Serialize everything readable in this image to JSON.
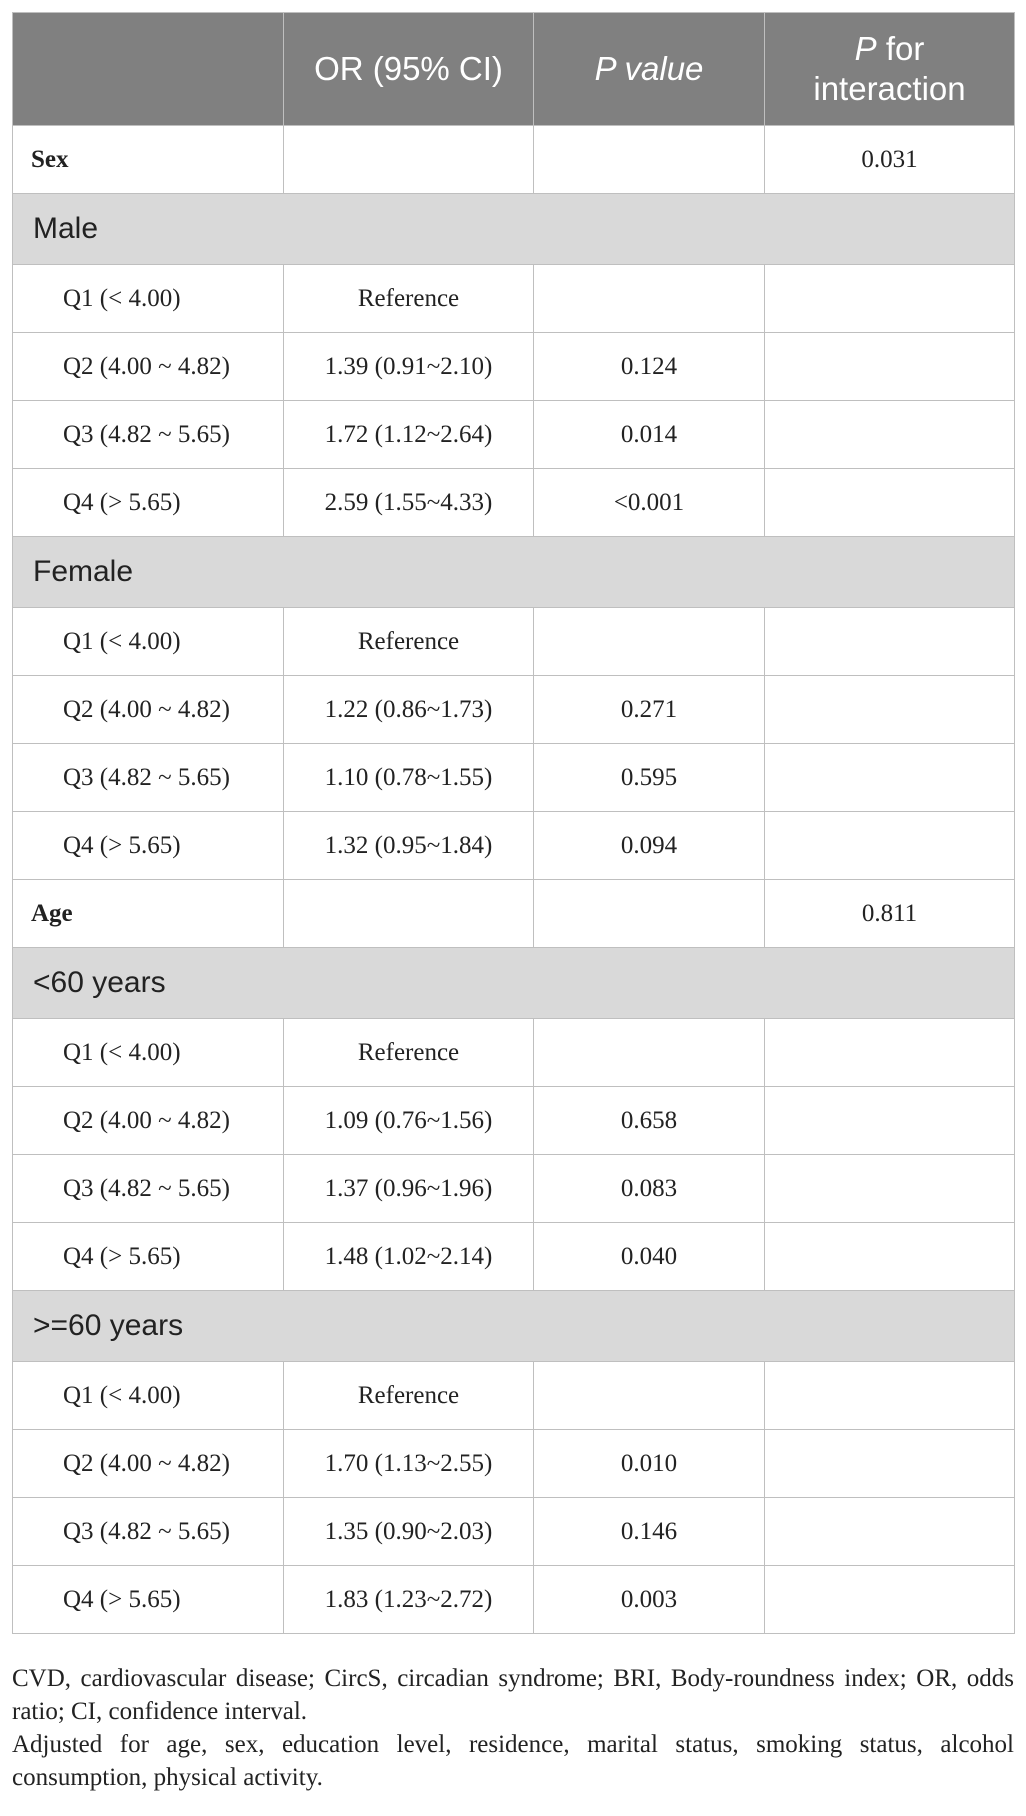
{
  "header": {
    "or": "OR (95% CI)",
    "p_value": "P value",
    "p_interaction_italic": "P",
    "p_interaction_rest": "for interaction"
  },
  "sections": [
    {
      "label": "Sex",
      "p_interaction": "0.031",
      "groups": [
        {
          "name": "Male",
          "rows": [
            {
              "label": "Q1 (< 4.00)",
              "or": "Reference"
            },
            {
              "label": "Q2 (4.00 ~ 4.82)",
              "or": "1.39 (0.91~2.10)",
              "p": "0.124"
            },
            {
              "label": "Q3 (4.82 ~ 5.65)",
              "or": "1.72 (1.12~2.64)",
              "p": "0.014"
            },
            {
              "label": "Q4 (> 5.65)",
              "or": "2.59 (1.55~4.33)",
              "p": "<0.001"
            }
          ]
        },
        {
          "name": "Female",
          "rows": [
            {
              "label": "Q1 (< 4.00)",
              "or": "Reference"
            },
            {
              "label": "Q2 (4.00 ~ 4.82)",
              "or": "1.22 (0.86~1.73)",
              "p": "0.271"
            },
            {
              "label": "Q3 (4.82 ~ 5.65)",
              "or": "1.10 (0.78~1.55)",
              "p": "0.595"
            },
            {
              "label": "Q4 (> 5.65)",
              "or": "1.32 (0.95~1.84)",
              "p": "0.094"
            }
          ]
        }
      ]
    },
    {
      "label": "Age",
      "p_interaction": "0.811",
      "groups": [
        {
          "name": "<60 years",
          "rows": [
            {
              "label": "Q1 (< 4.00)",
              "or": "Reference"
            },
            {
              "label": "Q2 (4.00 ~ 4.82)",
              "or": "1.09 (0.76~1.56)",
              "p": "0.658"
            },
            {
              "label": "Q3 (4.82 ~ 5.65)",
              "or": "1.37 (0.96~1.96)",
              "p": "0.083"
            },
            {
              "label": "Q4 (> 5.65)",
              "or": "1.48 (1.02~2.14)",
              "p": "0.040"
            }
          ]
        },
        {
          "name": ">=60 years",
          "rows": [
            {
              "label": "Q1 (< 4.00)",
              "or": "Reference"
            },
            {
              "label": "Q2 (4.00 ~ 4.82)",
              "or": "1.70 (1.13~2.55)",
              "p": "0.010"
            },
            {
              "label": "Q3 (4.82 ~ 5.65)",
              "or": "1.35 (0.90~2.03)",
              "p": "0.146"
            },
            {
              "label": "Q4 (> 5.65)",
              "or": "1.83 (1.23~2.72)",
              "p": "0.003"
            }
          ]
        }
      ]
    }
  ],
  "footnotes": [
    "CVD, cardiovascular disease; CircS, circadian syndrome; BRI, Body-roundness index; OR, odds ratio; CI, confidence interval.",
    "Adjusted for age, sex, education level, residence, marital status, smoking status, alcohol consumption, physical activity."
  ]
}
